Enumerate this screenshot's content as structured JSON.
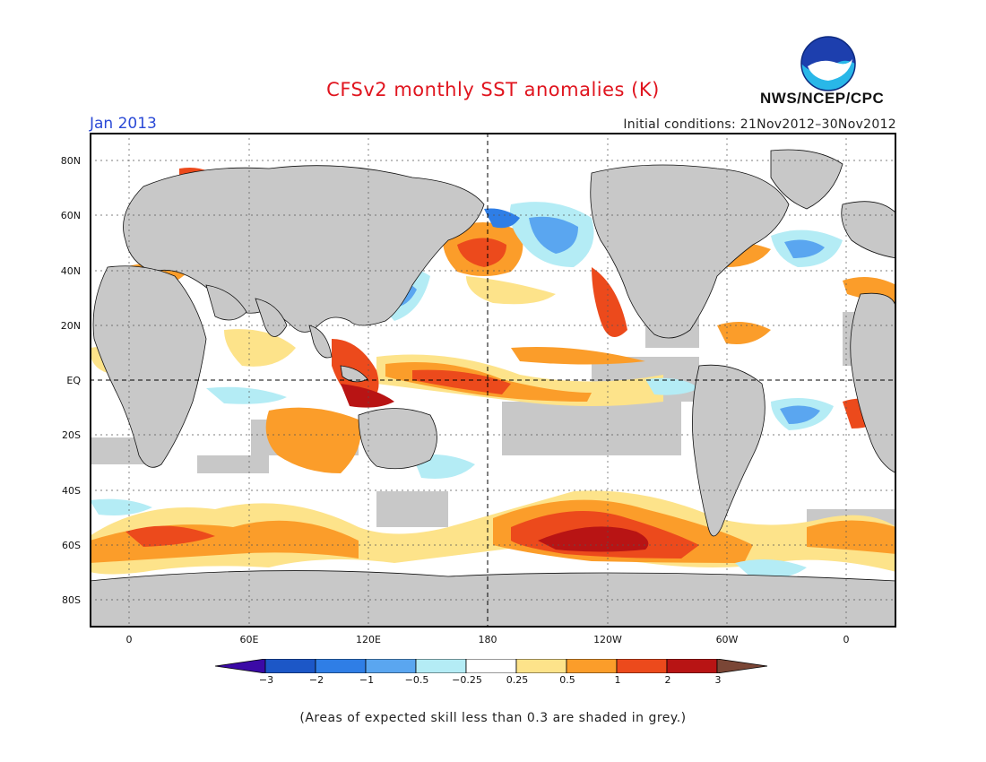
{
  "header": {
    "title": "CFSv2 monthly SST anomalies (K)",
    "month": "Jan 2013",
    "initial_conditions": "Initial conditions: 21Nov2012–30Nov2012",
    "agency": "NWS/NCEP/CPC",
    "logo_text": "NOAA"
  },
  "map": {
    "projection": "equirectangular",
    "lon_range": [
      -20,
      382
    ],
    "lat_range": [
      -90,
      90
    ],
    "lat_labels": [
      "80N",
      "60N",
      "40N",
      "20N",
      "EQ",
      "20S",
      "40S",
      "60S",
      "80S"
    ],
    "lon_labels": [
      "0",
      "60E",
      "120E",
      "180",
      "120W",
      "60W",
      "0"
    ],
    "land_color": "#c8c8c8",
    "ocean_color": "#ffffff",
    "low_skill_note": "(Areas of expected skill less than 0.3 are shaded in grey.)"
  },
  "colorbar": {
    "labels": [
      "−3",
      "−2",
      "−1",
      "−0.5",
      "−0.25",
      "0.25",
      "0.5",
      "1",
      "2",
      "3"
    ],
    "colors": [
      "#3b0aa6",
      "#1c57c7",
      "#2f7ee6",
      "#5aa6f0",
      "#b4ecf5",
      "#ffffff",
      "#fde38a",
      "#fb9d2a",
      "#ec4a1c",
      "#b81414",
      "#7a4636"
    ]
  },
  "anomaly_regions": [
    {
      "label": "Southern Ocean warm band",
      "level": "1"
    },
    {
      "label": "South Pacific warm core",
      "level": "2"
    },
    {
      "label": "North Pacific warm pool",
      "level": "2"
    },
    {
      "label": "NE Pacific cool patch",
      "level": "-0.5"
    },
    {
      "label": "Equatorial Pacific warm tongue",
      "level": "1"
    },
    {
      "label": "Indian Ocean warm patch",
      "level": "1"
    },
    {
      "label": "Maritime continent warm",
      "level": "2"
    },
    {
      "label": "South Atlantic cool patch",
      "level": "-0.5"
    },
    {
      "label": "North Atlantic cool patch",
      "level": "-0.5"
    }
  ]
}
